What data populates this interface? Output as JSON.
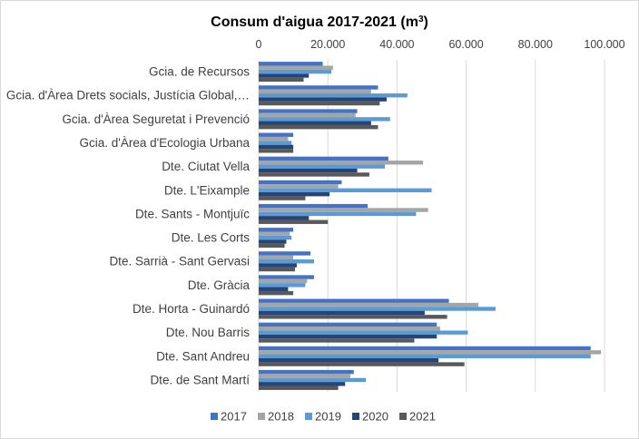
{
  "chart_data": {
    "type": "bar",
    "orientation": "horizontal",
    "title": "Consum d'aigua 2017-2021 (m",
    "title_superscript": "3",
    "title_suffix": ")",
    "xlim": [
      0,
      100000
    ],
    "x_ticks": [
      "0",
      "20.000",
      "40.000",
      "60.000",
      "80.000",
      "100.000"
    ],
    "x_tick_values": [
      0,
      20000,
      40000,
      60000,
      80000,
      100000
    ],
    "grid": "vertical",
    "legend_position": "bottom",
    "categories": [
      "Gcia. de Recursos",
      "Gcia. d'Àrea Drets socials, Justícia Global,…",
      "Gcia. d'Àrea Seguretat i Prevenció",
      "Gcia. d'Àrea d'Ecologia Urbana",
      "Dte. Ciutat Vella",
      "Dte. L'Eixample",
      "Dte. Sants - Montjuïc",
      "Dte. Les Corts",
      "Dte. Sarrià - Sant Gervasi",
      "Dte. Gràcia",
      "Dte. Horta - Guinardó",
      "Dte. Nou Barris",
      "Dte. Sant Andreu",
      "Dte. de Sant Martí"
    ],
    "series": [
      {
        "name": "2017",
        "color": "#4472C4",
        "values": [
          18500,
          34500,
          28500,
          10000,
          37500,
          24000,
          31500,
          10000,
          15000,
          16000,
          55000,
          51500,
          96000,
          27500
        ]
      },
      {
        "name": "2018",
        "color": "#A5A5A5",
        "values": [
          21500,
          32500,
          28000,
          8500,
          47500,
          23000,
          49000,
          9000,
          10000,
          14000,
          63500,
          52500,
          99000,
          26500
        ]
      },
      {
        "name": "2019",
        "color": "#5B9BD5",
        "values": [
          21000,
          43000,
          38000,
          9500,
          36500,
          50000,
          45500,
          9500,
          16000,
          13500,
          68500,
          60500,
          96000,
          31000
        ]
      },
      {
        "name": "2020",
        "color": "#264478",
        "values": [
          14500,
          37000,
          32500,
          10000,
          28500,
          20500,
          14500,
          8000,
          11000,
          8500,
          48000,
          51500,
          52000,
          25000
        ]
      },
      {
        "name": "2021",
        "color": "#595959",
        "values": [
          13000,
          35000,
          34500,
          10000,
          32000,
          13500,
          20000,
          7500,
          10500,
          10000,
          54500,
          45000,
          59500,
          23000
        ]
      }
    ]
  }
}
